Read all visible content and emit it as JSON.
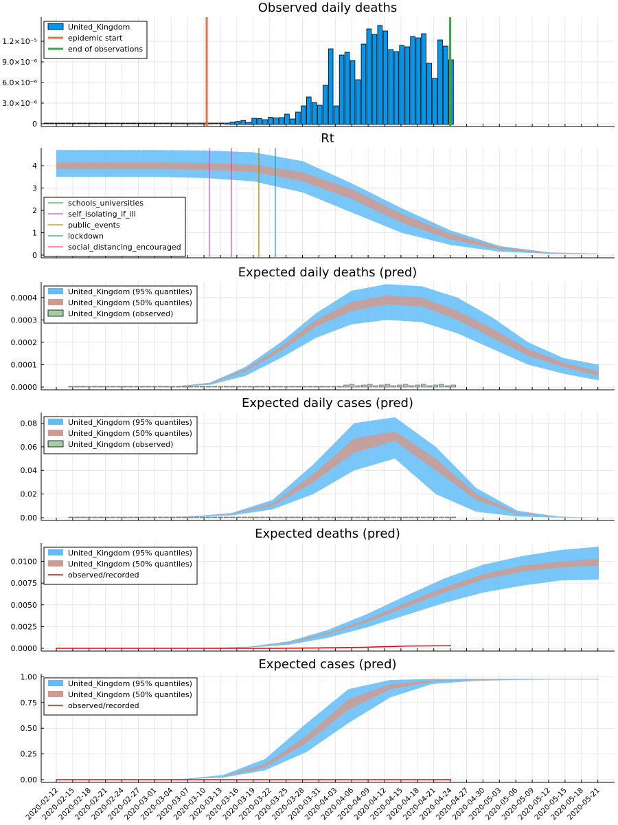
{
  "colors": {
    "blue": "#0097f0",
    "band95": "#62bcf7",
    "band50": "#cf9a8f",
    "observed_fill": "#a2cfa4",
    "red": "#e8000b",
    "orange": "#e26f46",
    "green": "#3da44d",
    "magenta": "#e240d6",
    "olive": "#b8860b",
    "teal": "#00a9a0",
    "pink": "#ff3a8c"
  },
  "x_axis": {
    "tick_labels": [
      "2020-02-12",
      "2020-02-15",
      "2020-02-18",
      "2020-02-21",
      "2020-02-24",
      "2020-02-27",
      "2020-03-01",
      "2020-03-04",
      "2020-03-07",
      "2020-03-10",
      "2020-03-13",
      "2020-03-16",
      "2020-03-19",
      "2020-03-22",
      "2020-03-25",
      "2020-03-28",
      "2020-03-31",
      "2020-04-03",
      "2020-04-06",
      "2020-04-09",
      "2020-04-12",
      "2020-04-15",
      "2020-04-18",
      "2020-04-21",
      "2020-04-24",
      "2020-04-27",
      "2020-04-30",
      "2020-05-03",
      "2020-05-06",
      "2020-05-09",
      "2020-05-12",
      "2020-05-15",
      "2020-05-18",
      "2020-05-21"
    ]
  },
  "chart_data": [
    {
      "type": "bar",
      "title": "Observed daily deaths",
      "x_start": "2020-02-10",
      "ylim": [
        0,
        1.55e-05
      ],
      "yticks": [
        {
          "v": 0,
          "label": "0"
        },
        {
          "v": 3e-06,
          "label": "3.0×10⁻⁶"
        },
        {
          "v": 6e-06,
          "label": "6.0×10⁻⁶"
        },
        {
          "v": 9e-06,
          "label": "9.0×10⁻⁶"
        },
        {
          "v": 1.2e-05,
          "label": "1.2×10⁻⁵"
        }
      ],
      "series": [
        {
          "name": "United_Kingdom",
          "values": [
            0,
            0,
            0,
            0,
            0,
            0,
            0,
            0,
            0,
            0,
            0,
            0,
            0,
            0,
            0,
            0,
            0,
            0,
            0,
            0,
            0,
            0,
            0,
            0,
            1.5e-08,
            1.5e-08,
            3e-08,
            3e-08,
            3e-08,
            4e-08,
            2e-08,
            0,
            0,
            7e-08,
            2.5e-07,
            3.3e-07,
            4.8e-07,
            2e-07,
            8e-07,
            7.5e-07,
            6e-07,
            9.5e-07,
            8.5e-07,
            9e-07,
            1.4e-06,
            7e-07,
            1.7e-06,
            2.6e-06,
            3.9e-06,
            3.1e-06,
            2.7e-06,
            5.6e-06,
            1.09e-05,
            2.6e-06,
            1e-05,
            1.04e-05,
            9.2e-06,
            6.4e-06,
            1.16e-05,
            1.38e-05,
            1.3e-05,
            1.43e-05,
            1.35e-05,
            1.08e-05,
            1.05e-05,
            1.14e-05,
            1.12e-05,
            1.27e-05,
            1.25e-05,
            1.31e-05,
            8.8e-06,
            6.6e-06,
            1.22e-05,
            1.13e-05,
            9.3e-06
          ]
        }
      ],
      "vlines": [
        {
          "name": "epidemic start",
          "date_index": 29
        },
        {
          "name": "end of observations",
          "date_index": 74
        }
      ],
      "legend": [
        "United_Kingdom",
        "epidemic start",
        "end of observations"
      ]
    },
    {
      "type": "area",
      "title": "Rt",
      "ylim": [
        0,
        4.8
      ],
      "yticks": [
        {
          "v": 0,
          "label": "0"
        },
        {
          "v": 1,
          "label": "1"
        },
        {
          "v": 2,
          "label": "2"
        },
        {
          "v": 3,
          "label": "3"
        },
        {
          "v": 4,
          "label": "4"
        }
      ],
      "band95": {
        "lower": [
          3.5,
          3.5,
          3.5,
          3.45,
          3.3,
          2.8,
          1.9,
          1.0,
          0.45,
          0.15,
          0.06,
          0.05
        ],
        "upper": [
          4.7,
          4.7,
          4.7,
          4.68,
          4.6,
          4.2,
          3.2,
          2.1,
          1.1,
          0.4,
          0.12,
          0.07
        ]
      },
      "band50": {
        "lower": [
          3.85,
          3.85,
          3.85,
          3.82,
          3.72,
          3.3,
          2.5,
          1.45,
          0.7,
          0.25,
          0.08,
          0.06
        ],
        "upper": [
          4.15,
          4.15,
          4.15,
          4.12,
          4.05,
          3.7,
          2.95,
          1.85,
          0.95,
          0.35,
          0.1,
          0.07
        ]
      },
      "interventions": [
        {
          "name": "schools_universities",
          "date": "2020-03-19"
        },
        {
          "name": "self_isolating_if_ill",
          "date": "2020-03-12"
        },
        {
          "name": "public_events",
          "date": "2020-03-19"
        },
        {
          "name": "lockdown",
          "date": "2020-03-22"
        },
        {
          "name": "social_distancing_encouraged",
          "date": "2020-03-15"
        }
      ],
      "legend": [
        "schools_universities",
        "self_isolating_if_ill",
        "public_events",
        "lockdown",
        "social_distancing_encouraged"
      ]
    },
    {
      "type": "area",
      "title": "Expected daily deaths (pred)",
      "ylim": [
        0,
        0.00047
      ],
      "yticks": [
        {
          "v": 0,
          "label": "0.0000"
        },
        {
          "v": 0.0001,
          "label": "0.0001"
        },
        {
          "v": 0.0002,
          "label": "0.0002"
        },
        {
          "v": 0.0003,
          "label": "0.0003"
        },
        {
          "v": 0.0004,
          "label": "0.0004"
        }
      ],
      "band95": {
        "lower": [
          0,
          0,
          0,
          1e-06,
          1e-05,
          5e-05,
          0.00013,
          0.00022,
          0.00028,
          0.0003,
          0.00029,
          0.00024,
          0.00017,
          0.0001,
          6e-05,
          3e-05
        ],
        "upper": [
          0,
          0,
          0,
          2e-06,
          2e-05,
          9e-05,
          0.0002,
          0.00033,
          0.00043,
          0.00046,
          0.00045,
          0.0004,
          0.00031,
          0.0002,
          0.00013,
          0.0001
        ]
      },
      "band50": {
        "lower": [
          0,
          0,
          0,
          1.5e-06,
          1.5e-05,
          7e-05,
          0.00016,
          0.00027,
          0.00034,
          0.00037,
          0.00036,
          0.0003,
          0.00022,
          0.00014,
          9e-05,
          5e-05
        ],
        "upper": [
          0,
          0,
          0,
          1.5e-06,
          1.8e-05,
          8e-05,
          0.00018,
          0.0003,
          0.00038,
          0.00041,
          0.0004,
          0.00034,
          0.00026,
          0.00017,
          0.00011,
          7e-05
        ]
      },
      "observed_label": "United_Kingdom (observed)",
      "legend": [
        "United_Kingdom (95% quantiles)",
        "United_Kingdom (50% quantiles)",
        "United_Kingdom (observed)"
      ]
    },
    {
      "type": "area",
      "title": "Expected daily cases (pred)",
      "ylim": [
        0,
        0.089
      ],
      "yticks": [
        {
          "v": 0,
          "label": "0.00"
        },
        {
          "v": 0.02,
          "label": "0.02"
        },
        {
          "v": 0.04,
          "label": "0.04"
        },
        {
          "v": 0.06,
          "label": "0.06"
        },
        {
          "v": 0.08,
          "label": "0.08"
        }
      ],
      "band95": {
        "lower": [
          0,
          0,
          0,
          0.0005,
          0.002,
          0.007,
          0.02,
          0.04,
          0.05,
          0.02,
          0.005,
          0.001,
          0.0002,
          0
        ],
        "upper": [
          0,
          0,
          0,
          0.001,
          0.004,
          0.015,
          0.045,
          0.08,
          0.085,
          0.06,
          0.025,
          0.006,
          0.001,
          0
        ]
      },
      "band50": {
        "lower": [
          0,
          0,
          0,
          0.0007,
          0.003,
          0.01,
          0.03,
          0.055,
          0.065,
          0.04,
          0.015,
          0.003,
          0.0005,
          0
        ],
        "upper": [
          0,
          0,
          0,
          0.0008,
          0.0035,
          0.012,
          0.037,
          0.067,
          0.073,
          0.05,
          0.02,
          0.004,
          0.0007,
          0
        ]
      },
      "observed_label": "United_Kingdom (observed)",
      "legend": [
        "United_Kingdom (95% quantiles)",
        "United_Kingdom (50% quantiles)",
        "United_Kingdom (observed)"
      ]
    },
    {
      "type": "area",
      "title": "Expected deaths (pred)",
      "ylim": [
        0,
        0.0121
      ],
      "yticks": [
        {
          "v": 0,
          "label": "0.0000"
        },
        {
          "v": 0.0025,
          "label": "0.0025"
        },
        {
          "v": 0.005,
          "label": "0.0050"
        },
        {
          "v": 0.0075,
          "label": "0.0075"
        },
        {
          "v": 0.01,
          "label": "0.0100"
        }
      ],
      "band95": {
        "lower": [
          0,
          0,
          0,
          0,
          2e-05,
          0.0001,
          0.0004,
          0.0012,
          0.0024,
          0.0038,
          0.0052,
          0.0064,
          0.0072,
          0.0078,
          0.0079
        ],
        "upper": [
          0,
          0,
          0,
          0,
          4e-05,
          0.0002,
          0.0008,
          0.0021,
          0.0039,
          0.006,
          0.008,
          0.0096,
          0.0106,
          0.0113,
          0.0117
        ]
      },
      "band50": {
        "lower": [
          0,
          0,
          0,
          0,
          3e-05,
          0.00015,
          0.0006,
          0.0016,
          0.003,
          0.0047,
          0.0064,
          0.0079,
          0.0088,
          0.0093,
          0.0095
        ],
        "upper": [
          0,
          0,
          0,
          0,
          4e-05,
          0.00017,
          0.0007,
          0.0018,
          0.0033,
          0.0052,
          0.007,
          0.0085,
          0.0095,
          0.01,
          0.0103
        ]
      },
      "observed": {
        "name": "observed/recorded",
        "values": [
          0,
          0,
          0,
          0,
          0,
          0,
          5e-05,
          0.00012,
          0.00025,
          0.0003
        ]
      },
      "legend": [
        "United_Kingdom (95% quantiles)",
        "United_Kingdom (50% quantiles)",
        "observed/recorded"
      ]
    },
    {
      "type": "area",
      "title": "Expected cases (pred)",
      "ylim": [
        0,
        1.03
      ],
      "yticks": [
        {
          "v": 0,
          "label": "0.00"
        },
        {
          "v": 0.25,
          "label": "0.25"
        },
        {
          "v": 0.5,
          "label": "0.50"
        },
        {
          "v": 0.75,
          "label": "0.75"
        },
        {
          "v": 1,
          "label": "1.00"
        }
      ],
      "band95": {
        "lower": [
          0,
          0,
          0,
          0.003,
          0.02,
          0.09,
          0.27,
          0.55,
          0.8,
          0.93,
          0.96,
          0.97,
          0.975,
          0.975
        ],
        "upper": [
          0,
          0,
          0,
          0.005,
          0.045,
          0.2,
          0.55,
          0.88,
          0.97,
          0.98,
          0.98,
          0.98,
          0.98,
          0.98
        ]
      },
      "band50": {
        "lower": [
          0,
          0,
          0,
          0.004,
          0.03,
          0.12,
          0.36,
          0.68,
          0.88,
          0.95,
          0.97,
          0.975,
          0.975,
          0.975
        ],
        "upper": [
          0,
          0,
          0,
          0.004,
          0.035,
          0.15,
          0.43,
          0.78,
          0.93,
          0.965,
          0.975,
          0.978,
          0.978,
          0.978
        ]
      },
      "observed": {
        "name": "observed/recorded",
        "values": [
          0,
          0,
          0,
          0,
          0,
          0,
          0,
          0,
          0,
          0
        ]
      },
      "legend": [
        "United_Kingdom (95% quantiles)",
        "United_Kingdom (50% quantiles)",
        "observed/recorded"
      ]
    }
  ]
}
